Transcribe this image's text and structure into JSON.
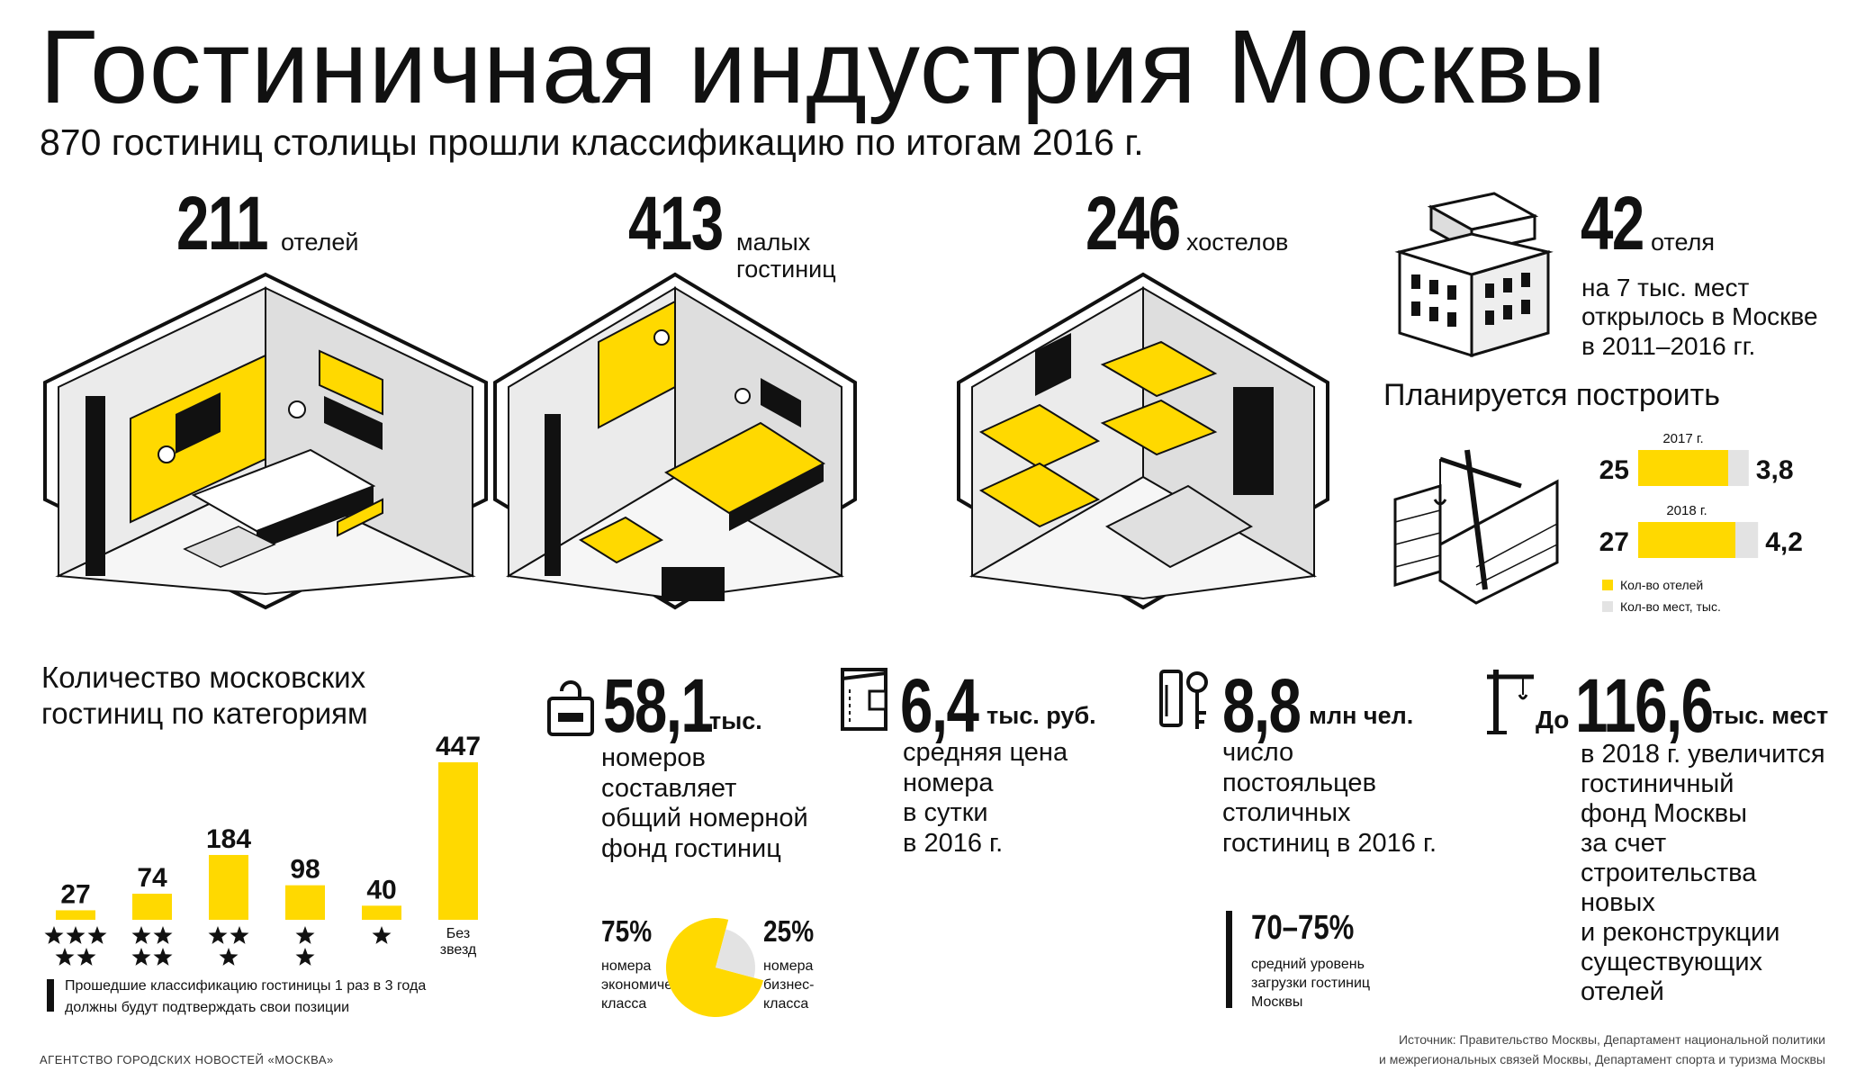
{
  "title": "Гостиничная индустрия Москвы",
  "subtitle": "870 гостиниц столицы прошли классификацию по итогам 2016 г.",
  "colors": {
    "accent": "#ffd900",
    "secondary": "#e3e3e3",
    "ink": "#111111"
  },
  "top_stats": [
    {
      "value": "211",
      "unit": "отелей",
      "icon": "hotel-room-illustration"
    },
    {
      "value": "413",
      "unit": "малых гостиниц",
      "icon": "small-hotel-room-illustration"
    },
    {
      "value": "246",
      "unit": "хостелов",
      "icon": "hostel-room-illustration"
    }
  ],
  "opened": {
    "value": "42",
    "unit": "отеля",
    "desc_lines": [
      "на 7 тыс. мест",
      "открылось в Москве",
      "в 2011–2016 гг."
    ],
    "icon": "building-icon"
  },
  "planned": {
    "title": "Планируется построить",
    "legend_hotels": "Кол-во отелей",
    "legend_places": "Кол-во мест, тыс.",
    "icon": "construction-crane-icon"
  },
  "chart_data": [
    {
      "type": "bar",
      "title": "Количество московских гостиниц по категориям",
      "categories": [
        "5 звезд",
        "4 звезды",
        "3 звезды",
        "2 звезды",
        "1 звезда",
        "Без звезд"
      ],
      "category_labels": [
        "",
        "",
        "",
        "",
        "",
        "Без звезд"
      ],
      "stars": [
        5,
        4,
        3,
        2,
        1,
        0
      ],
      "values": [
        27,
        74,
        184,
        98,
        40,
        447
      ],
      "value_labels": [
        "27",
        "74",
        "184",
        "98",
        "40",
        "447"
      ],
      "ylim": [
        0,
        447
      ],
      "color": "#ffd900",
      "grid": false
    },
    {
      "type": "bar",
      "title": "Планируется построить",
      "orientation": "horizontal-stacked",
      "categories": [
        "2017 г.",
        "2018 г."
      ],
      "series": [
        {
          "name": "Кол-во отелей",
          "values": [
            25,
            27
          ],
          "value_labels": [
            "25",
            "27"
          ],
          "color": "#ffd900"
        },
        {
          "name": "Кол-во мест, тыс.",
          "values": [
            3.8,
            4.2
          ],
          "value_labels": [
            "3,8",
            "4,2"
          ],
          "color": "#e3e3e3"
        }
      ]
    },
    {
      "type": "pie",
      "values": [
        75,
        25
      ],
      "value_labels": [
        "75%",
        "25%"
      ],
      "labels": [
        "номера экономического класса",
        "номера бизнес-класса"
      ],
      "colors": [
        "#ffd900",
        "#e3e3e3"
      ]
    }
  ],
  "note": {
    "line1": "Прошедшие классификацию гостиницы 1 раз в 3 года",
    "line2": "должны будут подтверждать свои позиции"
  },
  "stats": [
    {
      "value": "58,1",
      "unit": "тыс.",
      "desc_lines": [
        "номеров",
        "составляет",
        "общий номерной",
        "фонд гостиниц"
      ],
      "icon": "door-hanger-icon"
    },
    {
      "value": "6,4",
      "unit": "тыс. руб.",
      "desc_lines": [
        "средняя цена",
        "номера",
        "в сутки",
        "в 2016 г."
      ],
      "icon": "wallet-icon"
    },
    {
      "value": "8,8",
      "unit": "млн чел.",
      "desc_lines": [
        "число",
        "постояльцев",
        "столичных",
        "гостиниц в 2016 г."
      ],
      "icon": "key-card-icon"
    },
    {
      "prefix": "До",
      "value": "116,6",
      "unit": "тыс. мест",
      "desc_lines": [
        "в 2018 г. увеличится",
        "гостиничный",
        "фонд Москвы",
        "за счет",
        "строительства",
        "новых",
        "и реконструкции",
        "существующих",
        "отелей"
      ],
      "icon": "crane-icon"
    }
  ],
  "pie_labels": {
    "economy_value": "75%",
    "economy_lines": [
      "номера",
      "экономического",
      "класса"
    ],
    "business_value": "25%",
    "business_lines": [
      "номера",
      "бизнес-",
      "класса"
    ]
  },
  "occupancy": {
    "value": "70–75%",
    "desc_lines": [
      "средний уровень",
      "загрузки гостиниц",
      "Москвы"
    ]
  },
  "footer": {
    "agency": "АГЕНТСТВО ГОРОДСКИХ НОВОСТЕЙ «МОСКВА»",
    "source_line1": "Источник: Правительство Москвы, Департамент национальной политики",
    "source_line2": "и межрегиональных связей Москвы, Департамент спорта и туризма Москвы"
  }
}
